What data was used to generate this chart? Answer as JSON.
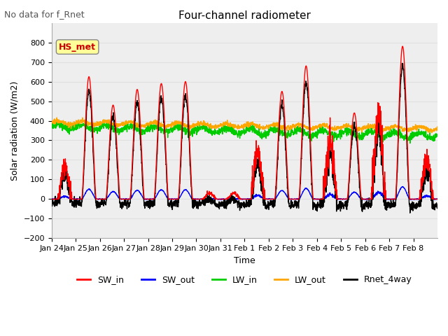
{
  "title": "Four-channel radiometer",
  "subtitle": "No data for f_Rnet",
  "xlabel": "Time",
  "ylabel": "Solar radiation (W/m2)",
  "ylim": [
    -200,
    900
  ],
  "yticks": [
    -200,
    -100,
    0,
    100,
    200,
    300,
    400,
    500,
    600,
    700,
    800
  ],
  "xtick_labels": [
    "Jan 24",
    "Jan 25",
    "Jan 26",
    "Jan 27",
    "Jan 28",
    "Jan 29",
    "Jan 30",
    "Jan 31",
    "Feb 1",
    "Feb 2",
    "Feb 3",
    "Feb 4",
    "Feb 5",
    "Feb 6",
    "Feb 7",
    "Feb 8"
  ],
  "station_label": "HS_met",
  "station_label_color": "#cc0000",
  "station_box_color": "#ffff99",
  "legend_entries": [
    "SW_in",
    "SW_out",
    "LW_in",
    "LW_out",
    "Rnet_4way"
  ],
  "colors": {
    "SW_in": "#ff0000",
    "SW_out": "#0000ff",
    "LW_in": "#00cc00",
    "LW_out": "#ffa500",
    "Rnet_4way": "#000000"
  },
  "background_color": "#ffffff",
  "grid_color": "#e0e0e0",
  "n_days": 16,
  "n_points_per_day": 144,
  "peak_heights": [
    170,
    625,
    480,
    560,
    590,
    600,
    30,
    30,
    250,
    550,
    680,
    300,
    440,
    430,
    780,
    200
  ],
  "cloud_factor": [
    0.7,
    1.0,
    0.9,
    1.0,
    1.0,
    1.0,
    0.2,
    0.1,
    0.5,
    0.95,
    1.0,
    0.7,
    0.9,
    0.85,
    1.0,
    0.8
  ]
}
